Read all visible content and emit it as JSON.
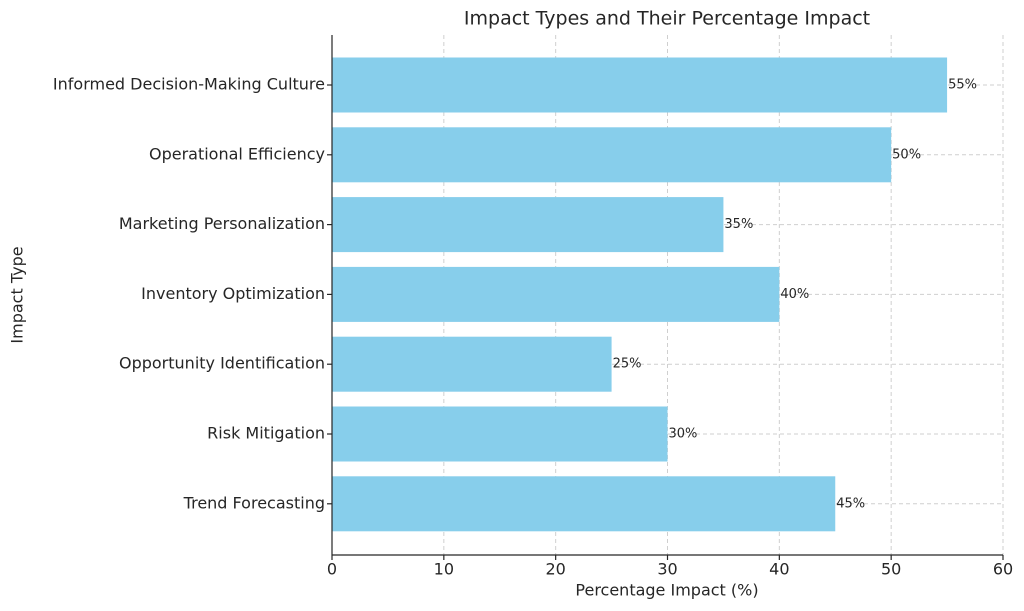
{
  "chart_data": {
    "type": "barh",
    "title": "Impact Types and Their Percentage Impact",
    "x_label": "Percentage Impact (%)",
    "y_label": "Impact Type",
    "categories": [
      "Informed Decision-Making Culture",
      "Operational Efficiency",
      "Marketing Personalization",
      "Inventory Optimization",
      "Opportunity Identification",
      "Risk Mitigation",
      "Trend Forecasting"
    ],
    "values": [
      55,
      50,
      35,
      40,
      25,
      30,
      45
    ],
    "value_labels": [
      "55%",
      "50%",
      "35%",
      "40%",
      "25%",
      "30%",
      "45%"
    ],
    "color": "#87ceeb",
    "xlim": [
      0,
      60
    ],
    "xticks": [
      0,
      10,
      20,
      30,
      40,
      50,
      60
    ],
    "grid": true
  }
}
